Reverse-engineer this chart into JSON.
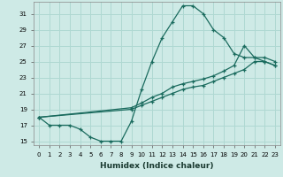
{
  "xlabel": "Humidex (Indice chaleur)",
  "ylabel": "",
  "bg_color": "#ceeae6",
  "line_color": "#1a6b5e",
  "grid_color": "#afd8d2",
  "xlim": [
    -0.5,
    23.5
  ],
  "ylim": [
    14.5,
    32.5
  ],
  "xticks": [
    0,
    1,
    2,
    3,
    4,
    5,
    6,
    7,
    8,
    9,
    10,
    11,
    12,
    13,
    14,
    15,
    16,
    17,
    18,
    19,
    20,
    21,
    22,
    23
  ],
  "yticks": [
    15,
    17,
    19,
    21,
    23,
    25,
    27,
    29,
    31
  ],
  "line1_x": [
    0,
    1,
    2,
    3,
    4,
    5,
    6,
    7,
    8,
    9,
    10,
    11,
    12,
    13,
    14,
    15,
    16,
    17,
    18,
    19,
    20,
    21,
    22,
    23
  ],
  "line1_y": [
    18,
    17,
    17,
    17,
    16.5,
    15.5,
    15,
    15,
    15,
    17.5,
    21.5,
    25,
    28,
    30,
    32,
    32,
    31,
    29,
    28,
    26,
    25.5,
    25.5,
    25,
    24.5
  ],
  "line2_x": [
    0,
    9,
    10,
    11,
    12,
    13,
    14,
    15,
    16,
    17,
    18,
    19,
    20,
    21,
    22,
    23
  ],
  "line2_y": [
    18,
    19,
    19.5,
    20,
    20.5,
    21,
    21.5,
    21.8,
    22,
    22.5,
    23,
    23.5,
    24,
    25,
    25,
    24.5
  ],
  "line3_x": [
    0,
    9,
    10,
    11,
    12,
    13,
    14,
    15,
    16,
    17,
    18,
    19,
    20,
    21,
    22,
    23
  ],
  "line3_y": [
    18,
    19.2,
    19.8,
    20.5,
    21,
    21.8,
    22.2,
    22.5,
    22.8,
    23.2,
    23.8,
    24.5,
    27,
    25.5,
    25.5,
    25
  ]
}
